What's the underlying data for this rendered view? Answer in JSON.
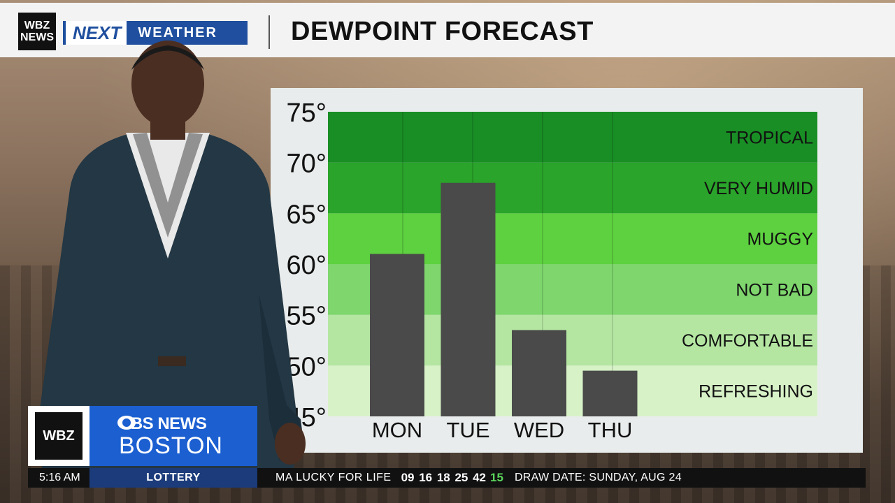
{
  "header": {
    "station_logo": [
      "WBZ",
      "NEWS"
    ],
    "brand_next": "NEXT",
    "brand_weather": "WEATHER",
    "title": "DEWPOINT FORECAST"
  },
  "chart_data": {
    "type": "bar",
    "title": "DEWPOINT FORECAST",
    "categories": [
      "MON",
      "TUE",
      "WED",
      "THU"
    ],
    "values": [
      61,
      68,
      53.5,
      49.5
    ],
    "ylim": [
      45,
      75
    ],
    "y_ticks": [
      75,
      70,
      65,
      60,
      55,
      50,
      45
    ],
    "y_tick_suffix": "°",
    "bar_color": "#4a4a4a",
    "bands": [
      {
        "label": "REFRESHING",
        "from": 45,
        "to": 50,
        "color": "#d8f2c8"
      },
      {
        "label": "COMFORTABLE",
        "from": 50,
        "to": 55,
        "color": "#b4e6a2"
      },
      {
        "label": "NOT BAD",
        "from": 55,
        "to": 60,
        "color": "#7ed66d"
      },
      {
        "label": "MUGGY",
        "from": 60,
        "to": 65,
        "color": "#5dd13f"
      },
      {
        "label": "VERY HUMID",
        "from": 65,
        "to": 70,
        "color": "#2aa42a"
      },
      {
        "label": "TROPICAL",
        "from": 70,
        "to": 75,
        "color": "#198e25"
      }
    ]
  },
  "lower_third": {
    "station": "WBZ",
    "network": "CBS NEWS",
    "city": "BOSTON"
  },
  "ticker": {
    "time": "5:16 AM",
    "label": "LOTTERY",
    "game": "MA LUCKY FOR LIFE",
    "numbers": "09 16 18 25 42",
    "bonus": "15",
    "draw": "DRAW DATE: SUNDAY, AUG 24"
  }
}
